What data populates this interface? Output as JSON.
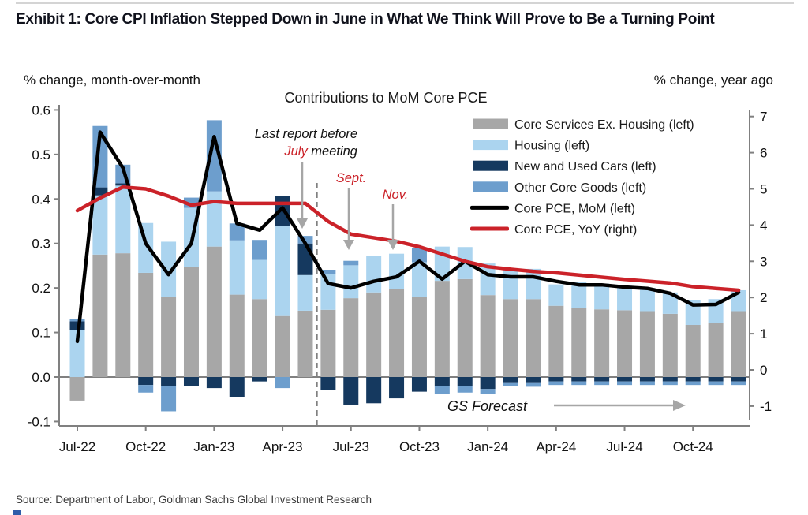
{
  "header": {
    "title": "Exhibit 1: Core CPI Inflation Stepped Down in June in What We Think Will Prove to Be a Turning Point"
  },
  "footer": {
    "source": "Source: Department of Labor, Goldman Sachs Global Investment Research"
  },
  "chart": {
    "inner_title": "Contributions to MoM Core PCE",
    "left_axis_header": "% change, month-over-month",
    "right_axis_header": "% change, year ago"
  },
  "chart_data": {
    "type": "bar",
    "subtype": "stacked-bar-with-lines",
    "title": "Contributions to MoM Core PCE",
    "xlabel": "",
    "ylabel_left": "% change, month-over-month",
    "ylabel_right": "% change, year ago",
    "ylim_left": [
      -0.1,
      0.6
    ],
    "ylim_right": [
      -1,
      7
    ],
    "left_tick_labels": [
      "0.6",
      "0.5",
      "0.4",
      "0.3",
      "0.2",
      "0.1",
      "0.0",
      "-0.1"
    ],
    "left_tick_values": [
      0.6,
      0.5,
      0.4,
      0.3,
      0.2,
      0.1,
      0.0,
      -0.1
    ],
    "right_tick_labels": [
      "7",
      "6",
      "5",
      "4",
      "3",
      "2",
      "1",
      "0",
      "-1"
    ],
    "right_tick_values": [
      7,
      6,
      5,
      4,
      3,
      2,
      1,
      0,
      -1
    ],
    "grid": false,
    "legend_position": "upper-right-inside",
    "categories": [
      "Jul-22",
      "Aug-22",
      "Sep-22",
      "Oct-22",
      "Nov-22",
      "Dec-22",
      "Jan-23",
      "Feb-23",
      "Mar-23",
      "Apr-23",
      "May-23",
      "Jun-23",
      "Jul-23",
      "Aug-23",
      "Sep-23",
      "Oct-23",
      "Nov-23",
      "Dec-23",
      "Jan-24",
      "Feb-24",
      "Mar-24",
      "Apr-24",
      "May-24",
      "Jun-24",
      "Jul-24",
      "Aug-24",
      "Sep-24",
      "Oct-24",
      "Nov-24",
      "Dec-24"
    ],
    "x_axis_labeled_ticks": [
      "Jul-22",
      "Oct-22",
      "Jan-23",
      "Apr-23",
      "Jul-23",
      "Oct-23",
      "Jan-24",
      "Apr-24",
      "Jul-24",
      "Oct-24"
    ],
    "forecast_divider_between": [
      "May-23",
      "Jun-23"
    ],
    "series": [
      {
        "name": "Core Services Ex. Housing (left)",
        "kind": "bar",
        "color": "#a7a7a7",
        "values": [
          -0.053,
          0.275,
          0.278,
          0.234,
          0.179,
          0.248,
          0.293,
          0.185,
          0.175,
          0.137,
          0.149,
          0.151,
          0.177,
          0.19,
          0.198,
          0.18,
          0.216,
          0.22,
          0.184,
          0.175,
          0.175,
          0.16,
          0.155,
          0.152,
          0.15,
          0.148,
          0.142,
          0.117,
          0.122,
          0.148
        ]
      },
      {
        "name": "Housing (left)",
        "kind": "bar",
        "color": "#abd4ef",
        "values": [
          0.105,
          0.133,
          0.152,
          0.112,
          0.125,
          0.132,
          0.124,
          0.122,
          0.088,
          0.203,
          0.08,
          0.08,
          0.074,
          0.082,
          0.079,
          0.078,
          0.077,
          0.072,
          0.071,
          0.069,
          0.068,
          0.048,
          0.058,
          0.058,
          0.055,
          0.052,
          0.048,
          0.055,
          0.053,
          0.047
        ]
      },
      {
        "name": "New and Used Cars (left)",
        "kind": "bar",
        "color": "#15395f",
        "values": [
          0.02,
          0.018,
          0.005,
          -0.018,
          -0.02,
          -0.02,
          -0.025,
          -0.045,
          -0.01,
          0.066,
          0.071,
          -0.03,
          -0.062,
          -0.059,
          -0.048,
          -0.033,
          -0.02,
          -0.02,
          -0.027,
          -0.012,
          -0.012,
          -0.01,
          -0.01,
          -0.01,
          -0.01,
          -0.01,
          -0.01,
          -0.01,
          -0.01,
          -0.01
        ]
      },
      {
        "name": "Other Core Goods (left)",
        "kind": "bar",
        "color": "#6d9ecd",
        "values": [
          0.005,
          0.138,
          0.042,
          -0.017,
          -0.057,
          0.023,
          0.16,
          0.038,
          0.045,
          -0.025,
          0.017,
          0.01,
          0.01,
          0.0,
          0.0,
          0.032,
          -0.019,
          -0.015,
          -0.012,
          -0.009,
          -0.01,
          -0.008,
          -0.008,
          -0.008,
          -0.008,
          -0.008,
          -0.008,
          -0.008,
          -0.008,
          -0.008
        ]
      },
      {
        "name": "Core PCE, MoM (left)",
        "kind": "line",
        "axis": "left",
        "color": "#000000",
        "values": [
          0.08,
          0.55,
          0.47,
          0.3,
          0.23,
          0.3,
          0.54,
          0.345,
          0.33,
          0.38,
          0.3,
          0.21,
          0.2,
          0.215,
          0.225,
          0.26,
          0.22,
          0.26,
          0.23,
          0.225,
          0.225,
          0.215,
          0.207,
          0.207,
          0.202,
          0.199,
          0.188,
          0.162,
          0.163,
          0.19
        ]
      },
      {
        "name": "Core PCE, YoY (right)",
        "kind": "line",
        "axis": "right",
        "color": "#cb2229",
        "values": [
          4.4,
          4.75,
          5.05,
          5.0,
          4.8,
          4.55,
          4.65,
          4.6,
          4.6,
          4.6,
          4.6,
          4.1,
          3.75,
          3.65,
          3.55,
          3.4,
          3.2,
          3.0,
          2.85,
          2.78,
          2.72,
          2.68,
          2.62,
          2.56,
          2.5,
          2.45,
          2.4,
          2.3,
          2.25,
          2.2
        ]
      }
    ],
    "annotations": {
      "last_report_line1": "Last report before",
      "last_report_line2_red": "July",
      "last_report_line2_rest": " meeting",
      "sept_label": "Sept.",
      "nov_label": "Nov.",
      "gs_forecast_label": "GS Forecast"
    },
    "colors": {
      "accent_red": "#cb2229",
      "axis_gray": "#808080",
      "annotation_arrow_gray": "#a6a6a6",
      "text_dark": "#111111"
    }
  }
}
